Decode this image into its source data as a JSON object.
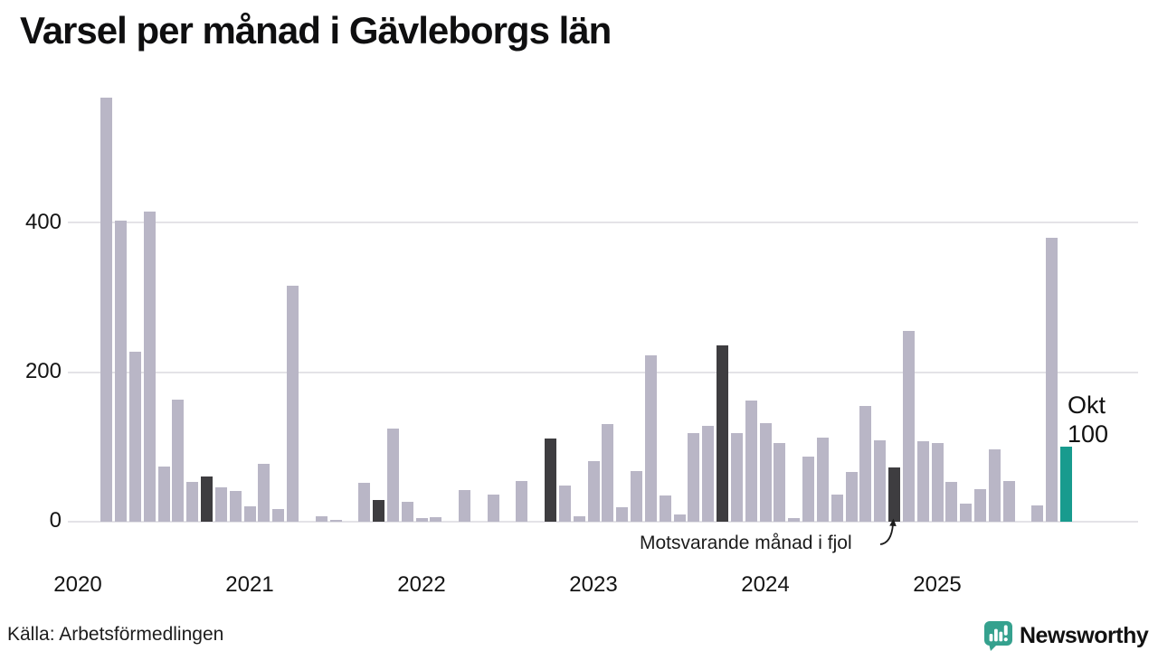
{
  "title": "Varsel per månad i Gävleborgs län",
  "y_axis": {
    "ticks": [
      "400",
      "200",
      "0"
    ]
  },
  "x_axis": {
    "years": [
      "2020",
      "2021",
      "2022",
      "2023",
      "2024",
      "2025"
    ]
  },
  "annotations": {
    "fjol_label": "Motsvarande månad i fjol"
  },
  "footer": {
    "source": "Källa: Arbetsförmedlingen",
    "logo_text": "Newsworthy"
  },
  "colors": {
    "bar": "#b9b6c6",
    "bar_fjol": "#3e3d40",
    "bar_highlight": "#189b8e",
    "grid": "#e4e3e7",
    "logo": "#2a9a8b"
  },
  "chart_data": {
    "type": "bar",
    "title": "Varsel per månad i Gävleborgs län",
    "start_month": "2020-01",
    "end_month": "2025-10",
    "monthly_values": [
      0,
      0,
      567,
      402,
      227,
      414,
      74,
      163,
      53,
      60,
      46,
      41,
      21,
      78,
      17,
      315,
      0,
      7,
      2,
      0,
      52,
      29,
      125,
      27,
      5,
      6,
      0,
      42,
      0,
      36,
      0,
      54,
      0,
      111,
      49,
      7,
      81,
      131,
      19,
      68,
      222,
      35,
      10,
      118,
      128,
      236,
      119,
      162,
      132,
      105,
      5,
      87,
      113,
      36,
      67,
      155,
      109,
      72,
      255,
      108,
      105,
      53,
      24,
      44,
      97,
      54,
      0,
      22,
      380,
      100
    ],
    "october_previous_years": {
      "2020-10": 60,
      "2021-10": 29,
      "2022-10": 111,
      "2023-10": 236,
      "2024-10": 72
    },
    "highlighted_month": {
      "month": "2025-10",
      "label": "Okt",
      "value": 100
    },
    "ylabel": "",
    "xlabel": "",
    "yticks": [
      0,
      200,
      400
    ],
    "ylim": [
      0,
      580
    ],
    "grid": true,
    "year_labels": [
      "2020",
      "2021",
      "2022",
      "2023",
      "2024",
      "2025"
    ]
  }
}
